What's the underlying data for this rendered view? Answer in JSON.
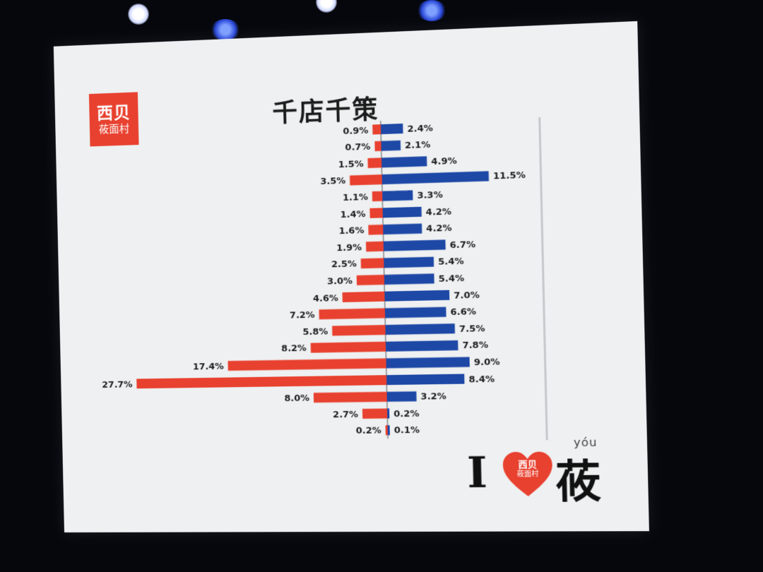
{
  "brand": {
    "logo_main": "西贝",
    "logo_sub": "莜面村",
    "slogan_i": "I",
    "slogan_char": "莜",
    "slogan_pinyin": "yóu",
    "heart_text_main": "西贝",
    "heart_text_sub": "莜面村"
  },
  "colors": {
    "left_bar": "#e8412f",
    "right_bar": "#1d48a6",
    "screen_bg": "#eef0f1"
  },
  "chart_data": {
    "type": "bar",
    "orientation": "horizontal-diverging",
    "title": "千店千策",
    "series": [
      {
        "side": "left",
        "values": [
          0.9,
          0.7,
          1.5,
          3.5,
          1.1,
          1.4,
          1.6,
          1.9,
          2.5,
          3.0,
          4.6,
          7.2,
          5.8,
          8.2,
          17.4,
          27.7,
          8.0,
          2.7,
          0.2
        ],
        "labels": [
          "0.9%",
          "0.7%",
          "1.5%",
          "3.5%",
          "1.1%",
          "1.4%",
          "1.6%",
          "1.9%",
          "2.5%",
          "3.0%",
          "4.6%",
          "7.2%",
          "5.8%",
          "8.2%",
          "17.4%",
          "27.7%",
          "8.0%",
          "2.7%",
          "0.2%"
        ]
      },
      {
        "side": "right",
        "values": [
          2.4,
          2.1,
          4.9,
          11.5,
          3.3,
          4.2,
          4.2,
          6.7,
          5.4,
          5.4,
          7.0,
          6.6,
          7.5,
          7.8,
          9.0,
          8.4,
          3.2,
          0.2,
          0.1
        ],
        "labels": [
          "2.4%",
          "2.1%",
          "4.9%",
          "11.5%",
          "3.3%",
          "4.2%",
          "4.2%",
          "6.7%",
          "5.4%",
          "5.4%",
          "7.0%",
          "6.6%",
          "7.5%",
          "7.8%",
          "9.0%",
          "8.4%",
          "3.2%",
          "0.2%",
          "0.1%"
        ]
      }
    ],
    "value_unit": "%",
    "legend": "none",
    "grid": false
  }
}
